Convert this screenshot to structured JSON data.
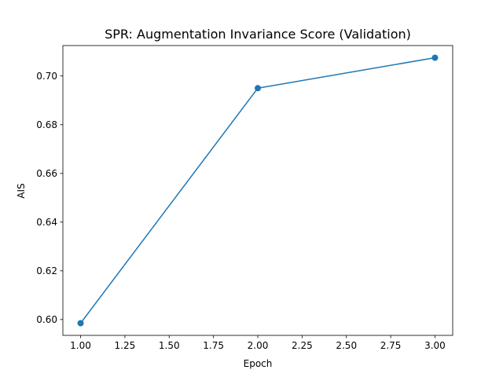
{
  "chart_data": {
    "type": "line",
    "title": "SPR: Augmentation Invariance Score (Validation)",
    "xlabel": "Epoch",
    "ylabel": "AIS",
    "xlim": [
      0.9,
      3.1
    ],
    "ylim": [
      0.5935,
      0.7125
    ],
    "x_ticks": [
      1.0,
      1.25,
      1.5,
      1.75,
      2.0,
      2.25,
      2.5,
      2.75,
      3.0
    ],
    "x_tick_labels": [
      "1.00",
      "1.25",
      "1.50",
      "1.75",
      "2.00",
      "2.25",
      "2.50",
      "2.75",
      "3.00"
    ],
    "y_ticks": [
      0.6,
      0.62,
      0.64,
      0.66,
      0.68,
      0.7
    ],
    "y_tick_labels": [
      "0.60",
      "0.62",
      "0.64",
      "0.66",
      "0.68",
      "0.70"
    ],
    "grid": false,
    "series": [
      {
        "color": "#1f77b4",
        "marker": "circle",
        "x": [
          1,
          2,
          3
        ],
        "y": [
          0.5985,
          0.695,
          0.7075
        ]
      }
    ]
  }
}
